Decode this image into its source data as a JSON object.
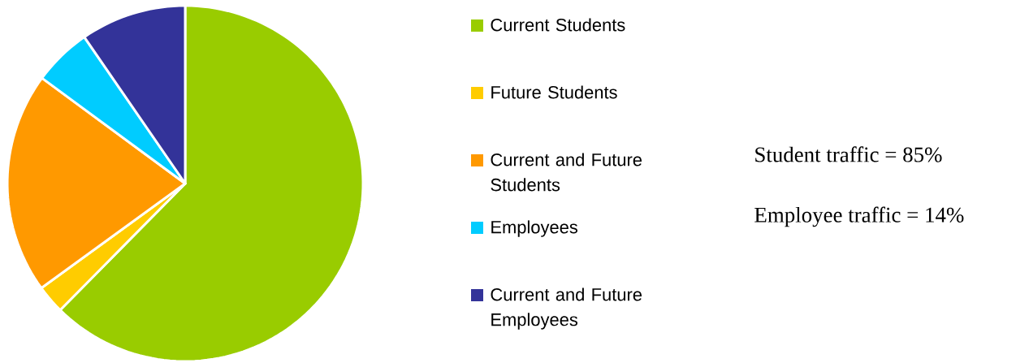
{
  "chart_data": {
    "type": "pie",
    "categories": [
      "Current Students",
      "Future Students",
      "Current and Future Students",
      "Employees",
      "Current and Future Employees"
    ],
    "values": [
      62.4,
      2.6,
      20.1,
      5.3,
      9.6
    ],
    "colors": [
      "#99cc00",
      "#ffcc00",
      "#ff9900",
      "#00ccff",
      "#333399"
    ],
    "legend": "right",
    "annotations": [
      "Student traffic = 85%",
      "Employee traffic = 14%"
    ]
  }
}
